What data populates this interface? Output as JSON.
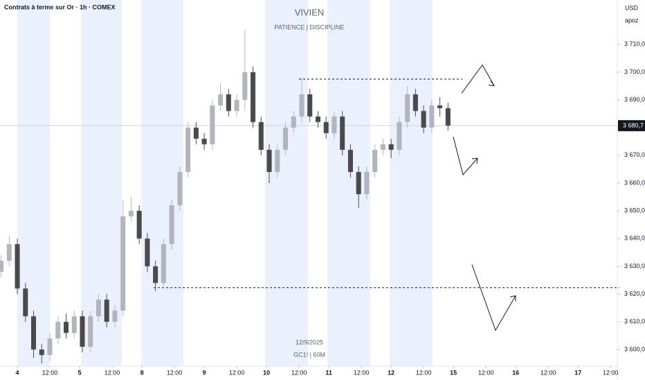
{
  "chart_data": {
    "type": "candlestick",
    "title": "Contrats à terme sur Or · 1h · COMEX",
    "annotations": [
      "VIVIEN",
      "PATIENCE  |  DISCIPLINE",
      "12/9/2025",
      "GC1!  |  60M"
    ],
    "currency": "USD",
    "user": "apoz",
    "x": [
      -6,
      -3,
      0,
      3,
      6,
      9,
      12,
      15,
      18,
      21,
      24,
      27,
      30,
      33,
      36,
      39,
      42,
      45,
      48,
      51,
      54,
      57,
      60,
      63,
      66,
      69,
      72,
      75,
      78,
      81,
      84,
      87,
      90,
      93,
      96,
      99,
      102,
      105,
      108,
      111,
      114,
      117,
      120,
      123,
      126,
      129,
      132,
      135,
      138,
      141,
      144,
      147,
      150,
      153,
      156,
      159
    ],
    "open": [
      3628,
      3632,
      3638,
      3622,
      3612,
      3600,
      3598,
      3604,
      3610,
      3606,
      3612,
      3601,
      3612,
      3618,
      3610,
      3614,
      3648,
      3650,
      3640,
      3630,
      3624,
      3638,
      3652,
      3664,
      3680,
      3676,
      3674,
      3688,
      3692,
      3686,
      3690,
      3700,
      3682,
      3672,
      3664,
      3672,
      3680,
      3684,
      3692,
      3684,
      3682,
      3678,
      3684,
      3672,
      3664,
      3656,
      3664,
      3672,
      3674,
      3672,
      3682,
      3692,
      3686,
      3680,
      3688,
      3687
    ],
    "high": [
      3634,
      3641,
      3640,
      3624,
      3614,
      3602,
      3606,
      3612,
      3613,
      3614,
      3614,
      3614,
      3620,
      3620,
      3616,
      3654,
      3655,
      3652,
      3642,
      3632,
      3640,
      3654,
      3666,
      3682,
      3682,
      3678,
      3690,
      3696,
      3694,
      3692,
      3715,
      3702,
      3684,
      3674,
      3674,
      3682,
      3686,
      3698,
      3694,
      3686,
      3684,
      3686,
      3686,
      3674,
      3666,
      3666,
      3674,
      3676,
      3676,
      3684,
      3695,
      3694,
      3688,
      3690,
      3691,
      3689
    ],
    "low": [
      3626,
      3630,
      3620,
      3610,
      3597,
      3595,
      3596,
      3602,
      3604,
      3604,
      3599,
      3599,
      3610,
      3608,
      3608,
      3612,
      3646,
      3638,
      3628,
      3621,
      3622,
      3636,
      3650,
      3662,
      3674,
      3672,
      3672,
      3686,
      3684,
      3684,
      3686,
      3680,
      3670,
      3660,
      3662,
      3670,
      3678,
      3682,
      3682,
      3680,
      3676,
      3676,
      3670,
      3662,
      3651,
      3654,
      3662,
      3670,
      3669,
      3670,
      3680,
      3684,
      3678,
      3678,
      3684,
      3679
    ],
    "close": [
      3632,
      3638,
      3622,
      3612,
      3600,
      3598,
      3604,
      3610,
      3606,
      3612,
      3601,
      3612,
      3618,
      3610,
      3614,
      3648,
      3650,
      3640,
      3630,
      3624,
      3638,
      3652,
      3664,
      3680,
      3676,
      3674,
      3688,
      3692,
      3686,
      3690,
      3700,
      3682,
      3672,
      3664,
      3672,
      3680,
      3684,
      3692,
      3684,
      3682,
      3678,
      3684,
      3672,
      3664,
      3656,
      3664,
      3672,
      3674,
      3672,
      3682,
      3692,
      3686,
      3680,
      3688,
      3687,
      3680.7
    ],
    "up_color": "#b2b5be",
    "down_color": "#4a4a4a",
    "xlim": [
      -6.4,
      221
    ],
    "xticks": [
      {
        "value": 0,
        "label": "4"
      },
      {
        "value": 12,
        "label": "12:00"
      },
      {
        "value": 23,
        "label": "5"
      },
      {
        "value": 35,
        "label": "12:00"
      },
      {
        "value": 46,
        "label": "8"
      },
      {
        "value": 58,
        "label": "12:00"
      },
      {
        "value": 69,
        "label": "9"
      },
      {
        "value": 81,
        "label": "12:00"
      },
      {
        "value": 92,
        "label": "10"
      },
      {
        "value": 104,
        "label": "12:00"
      },
      {
        "value": 115,
        "label": "11"
      },
      {
        "value": 127,
        "label": "12:00"
      },
      {
        "value": 138,
        "label": "12"
      },
      {
        "value": 150,
        "label": "12:00"
      },
      {
        "value": 161,
        "label": "15"
      },
      {
        "value": 173,
        "label": "12:00"
      },
      {
        "value": 184,
        "label": "16"
      },
      {
        "value": 196,
        "label": "12:00"
      },
      {
        "value": 207,
        "label": "17"
      },
      {
        "value": 219,
        "label": "12:00"
      }
    ],
    "ylim": [
      3594,
      3726
    ],
    "yticks": [
      {
        "value": 3600,
        "label": "3 600,0"
      },
      {
        "value": 3610,
        "label": "3 610,0"
      },
      {
        "value": 3620,
        "label": "3 620,0"
      },
      {
        "value": 3630,
        "label": "3 630,0"
      },
      {
        "value": 3640,
        "label": "3 640,0"
      },
      {
        "value": 3650,
        "label": "3 650,0"
      },
      {
        "value": 3660,
        "label": "3 660,0"
      },
      {
        "value": 3670,
        "label": "3 670,0"
      },
      {
        "value": 3680,
        "label": "3 680,0"
      },
      {
        "value": 3690,
        "label": "3 690,0"
      },
      {
        "value": 3700,
        "label": "3 700,0"
      },
      {
        "value": 3710,
        "label": "3 710,0"
      }
    ],
    "last_price": {
      "value": 3680.7,
      "label": "3 680,7"
    },
    "levels": [
      3697.5,
      3622.3
    ]
  }
}
